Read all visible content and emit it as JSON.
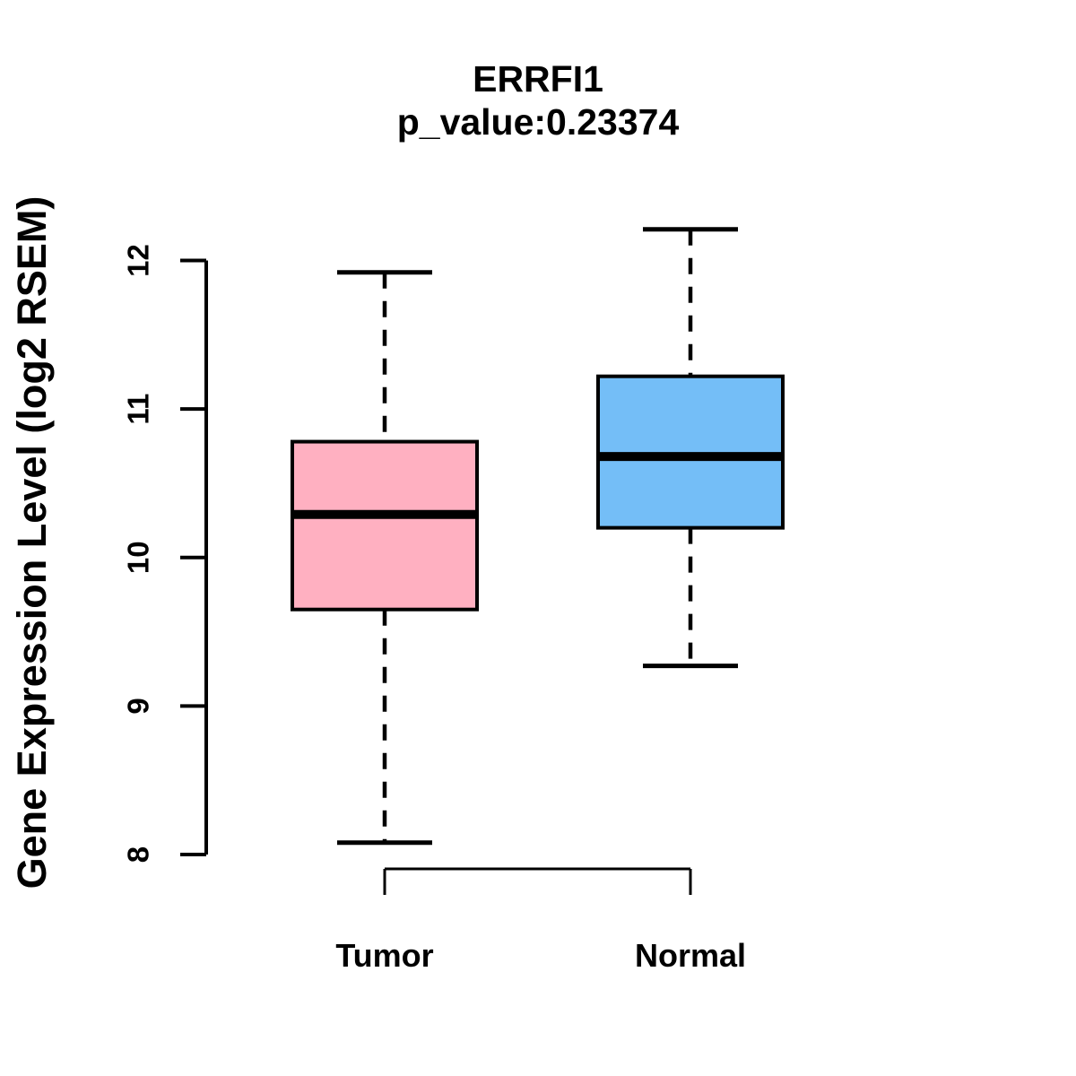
{
  "chart_data": {
    "type": "boxplot",
    "title": "ERRFI1",
    "subtitle": "p_value:0.23374",
    "ylabel": "Gene Expression Level (log2 RSEM)",
    "xlabel": "",
    "ylim": [
      8,
      12
    ],
    "yticks": [
      8,
      9,
      10,
      11,
      12
    ],
    "categories": [
      "Tumor",
      "Normal"
    ],
    "series": [
      {
        "name": "Tumor",
        "color": "#FFB0C1",
        "lower_whisker": 8.08,
        "q1": 9.65,
        "median": 10.29,
        "q3": 10.78,
        "upper_whisker": 11.92
      },
      {
        "name": "Normal",
        "color": "#74BEF7",
        "lower_whisker": 9.27,
        "q1": 10.2,
        "median": 10.68,
        "q3": 11.22,
        "upper_whisker": 12.21
      }
    ],
    "layout_hints": {
      "grid": "off",
      "legend": "none",
      "whisker_style": "dashed",
      "background": "#FFFFFF",
      "stroke_color": "#000000"
    }
  }
}
